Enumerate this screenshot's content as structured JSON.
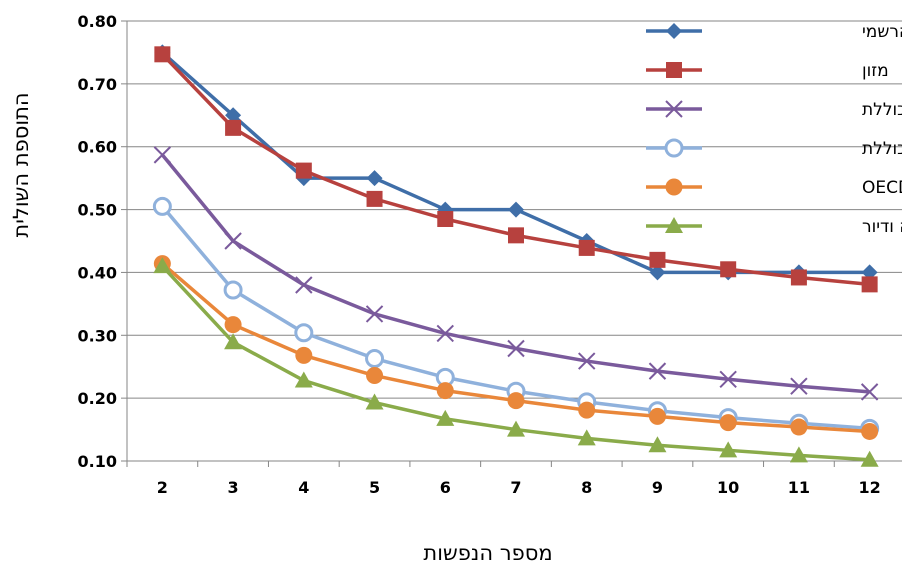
{
  "chart_data": {
    "type": "line",
    "title": "",
    "xlabel": "מספר הנפשות",
    "ylabel": "התוספת השולית",
    "categories": [
      "2",
      "3",
      "4",
      "5",
      "6",
      "7",
      "8",
      "9",
      "10",
      "11",
      "12"
    ],
    "ylim": [
      0.1,
      0.8
    ],
    "yticks": [
      "0.10",
      "0.20",
      "0.30",
      "0.40",
      "0.50",
      "0.60",
      "0.70",
      "0.80"
    ],
    "grid": "horizontal",
    "legend_position": "top-right",
    "series": [
      {
        "name": "הסולם הרשמי",
        "color": "#3f6ea8",
        "marker": "diamond",
        "values": [
          0.75,
          0.65,
          0.55,
          0.55,
          0.5,
          0.5,
          0.45,
          0.4,
          0.4,
          0.4,
          0.4
        ]
      },
      {
        "name": "מזון",
        "color": "#b7413e",
        "marker": "square",
        "values": [
          0.747,
          0.63,
          0.562,
          0.517,
          0.485,
          0.459,
          0.439,
          0.42,
          0.405,
          0.392,
          0.381
        ]
      },
      {
        "name": "צריכה כספית כוללת",
        "color": "#7a5a9c",
        "marker": "x",
        "values": [
          0.587,
          0.45,
          0.38,
          0.334,
          0.303,
          0.279,
          0.259,
          0.243,
          0.23,
          0.219,
          0.21
        ]
      },
      {
        "name": "צריכה  כוללת",
        "color": "#8fb1dc",
        "marker": "circle-open",
        "values": [
          0.505,
          0.372,
          0.304,
          0.263,
          0.233,
          0.211,
          0.194,
          0.18,
          0.169,
          0.16,
          0.152
        ]
      },
      {
        "name": "סולם ה-OECD",
        "color": "#e9873a",
        "marker": "circle",
        "values": [
          0.414,
          0.317,
          0.268,
          0.236,
          0.212,
          0.196,
          0.181,
          0.171,
          0.161,
          0.154,
          0.147
        ]
      },
      {
        "name": "מזון, הלבשה ודיור",
        "color": "#8aab4a",
        "marker": "triangle",
        "values": [
          0.41,
          0.289,
          0.228,
          0.193,
          0.167,
          0.15,
          0.136,
          0.125,
          0.117,
          0.109,
          0.102
        ]
      }
    ]
  }
}
